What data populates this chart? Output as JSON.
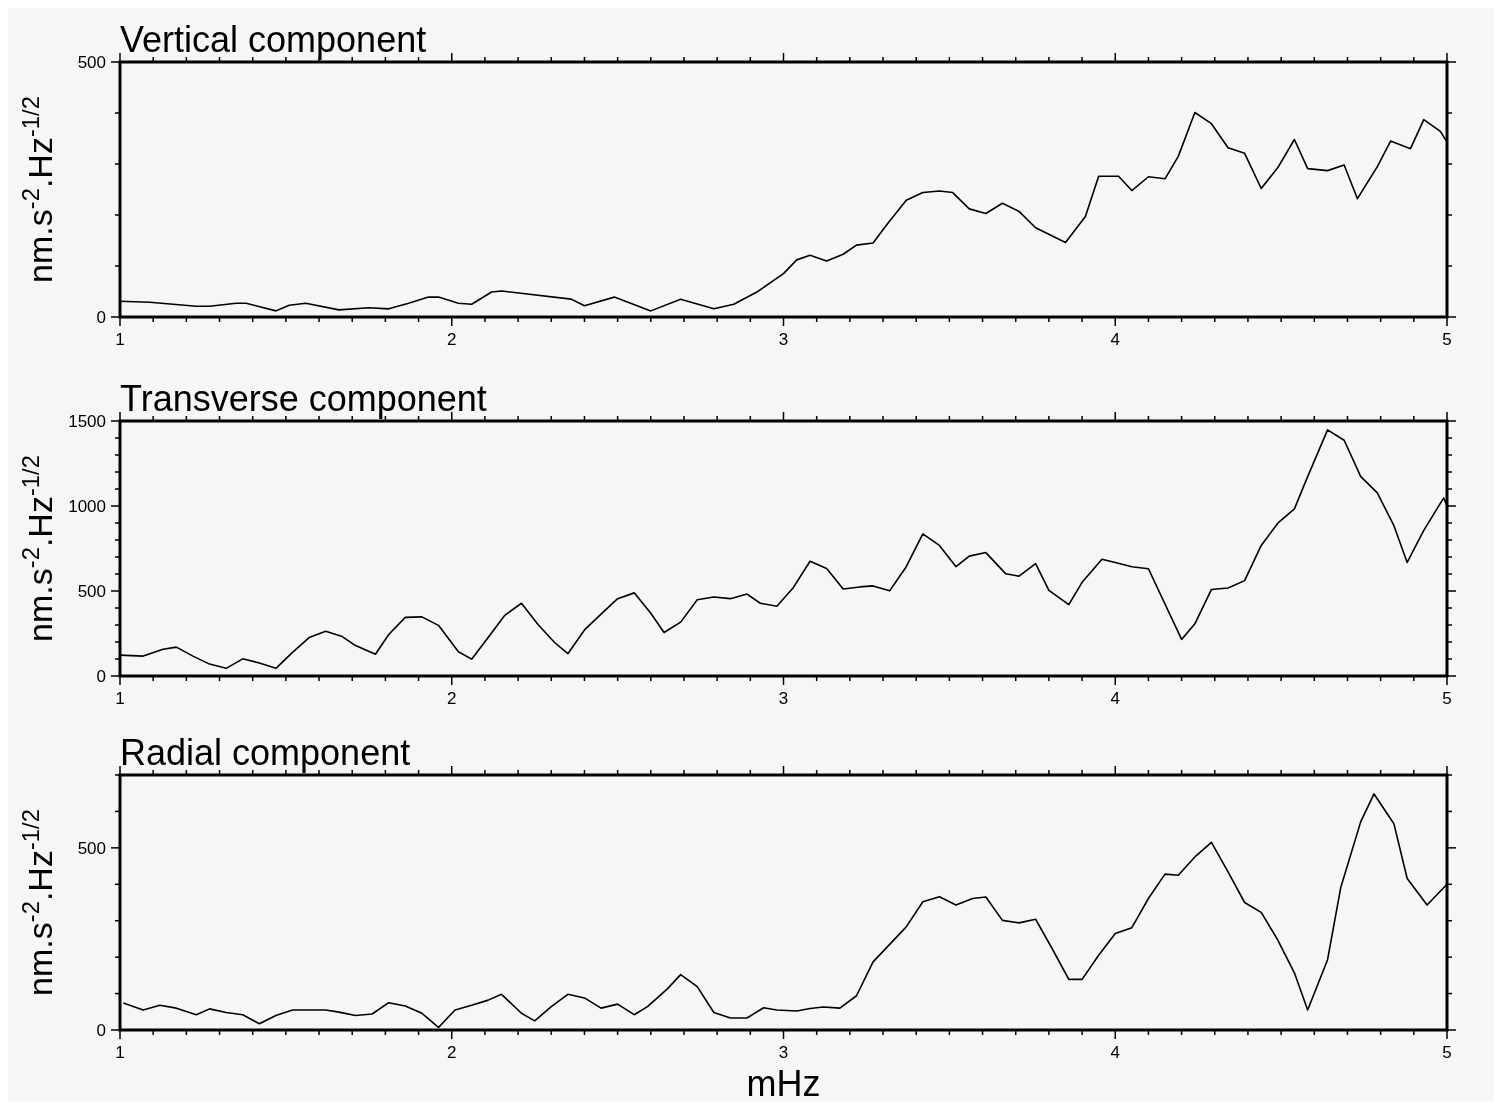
{
  "chart_data": [
    {
      "type": "line",
      "title": "Vertical component",
      "ylabel": "nm.s$^{-2}$.Hz$^{-1/2}$",
      "xlim": [
        1,
        5
      ],
      "ylim": [
        0,
        500
      ],
      "xticks": [
        1,
        {
          "value": 1.1,
          "label": null
        },
        {
          "value": 1.2,
          "label": null
        },
        {
          "value": 1.3,
          "label": null
        },
        {
          "value": 1.4,
          "label": null
        },
        {
          "value": 1.5,
          "label": null
        },
        {
          "value": 1.6,
          "label": null
        },
        {
          "value": 1.7,
          "label": null
        },
        {
          "value": 1.8,
          "label": null
        },
        {
          "value": 1.9,
          "label": null
        },
        2,
        {
          "value": 2.1,
          "label": null
        },
        {
          "value": 2.2,
          "label": null
        },
        {
          "value": 2.3,
          "label": null
        },
        {
          "value": 2.4,
          "label": null
        },
        {
          "value": 2.5,
          "label": null
        },
        {
          "value": 2.6,
          "label": null
        },
        {
          "value": 2.7,
          "label": null
        },
        {
          "value": 2.8,
          "label": null
        },
        {
          "value": 2.9,
          "label": null
        },
        3,
        {
          "value": 3.1,
          "label": null
        },
        {
          "value": 3.2,
          "label": null
        },
        {
          "value": 3.3,
          "label": null
        },
        {
          "value": 3.4,
          "label": null
        },
        {
          "value": 3.5,
          "label": null
        },
        {
          "value": 3.6,
          "label": null
        },
        {
          "value": 3.7,
          "label": null
        },
        {
          "value": 3.8,
          "label": null
        },
        {
          "value": 3.9,
          "label": null
        },
        4,
        {
          "value": 4.1,
          "label": null
        },
        {
          "value": 4.2,
          "label": null
        },
        {
          "value": 4.3,
          "label": null
        },
        {
          "value": 4.4,
          "label": null
        },
        {
          "value": 4.5,
          "label": null
        },
        {
          "value": 4.6,
          "label": null
        },
        {
          "value": 4.7,
          "label": null
        },
        {
          "value": 4.8,
          "label": null
        },
        {
          "value": 4.9,
          "label": null
        },
        5
      ],
      "yticks": [
        0,
        {
          "value": 100,
          "label": null
        },
        {
          "value": 200,
          "label": null
        },
        {
          "value": 300,
          "label": null
        },
        {
          "value": 400,
          "label": null
        },
        500
      ],
      "series": [
        {
          "color": "#000000",
          "x": [
            1.0,
            1.09,
            1.23,
            1.27,
            1.35,
            1.38,
            1.47,
            1.51,
            1.56,
            1.66,
            1.75,
            1.81,
            1.87,
            1.93,
            1.96,
            2.02,
            2.06,
            2.12,
            2.15,
            2.36,
            2.4,
            2.49,
            2.6,
            2.69,
            2.79,
            2.85,
            2.92,
            3.0,
            3.04,
            3.08,
            3.13,
            3.18,
            3.22,
            3.27,
            3.31,
            3.37,
            3.42,
            3.47,
            3.51,
            3.56,
            3.61,
            3.66,
            3.71,
            3.76,
            3.85,
            3.91,
            3.95,
            4.01,
            4.05,
            4.1,
            4.15,
            4.19,
            4.24,
            4.29,
            4.34,
            4.39,
            4.44,
            4.49,
            4.54,
            4.58,
            4.64,
            4.69,
            4.73,
            4.79,
            4.83,
            4.89,
            4.93,
            4.98,
            5.0
          ],
          "values": [
            31,
            29,
            21,
            21,
            27,
            27,
            12,
            23,
            27,
            14,
            18,
            16,
            27,
            39,
            39,
            27,
            25,
            49,
            51,
            35,
            22,
            39,
            12,
            35,
            16,
            25,
            49,
            85,
            112,
            121,
            110,
            123,
            141,
            145,
            180,
            229,
            244,
            247,
            244,
            212,
            203,
            223,
            207,
            175,
            146,
            197,
            276,
            276,
            248,
            275,
            271,
            315,
            401,
            379,
            332,
            321,
            252,
            293,
            348,
            291,
            287,
            298,
            232,
            295,
            345,
            330,
            387,
            364,
            343
          ]
        }
      ]
    },
    {
      "type": "line",
      "title": "Transverse component",
      "ylabel": "nm.s$^{-2}$.Hz$^{-1/2}$",
      "xlim": [
        1,
        5
      ],
      "ylim": [
        0,
        1500
      ],
      "xticks": [
        1,
        {
          "value": 1.1,
          "label": null
        },
        {
          "value": 1.2,
          "label": null
        },
        {
          "value": 1.3,
          "label": null
        },
        {
          "value": 1.4,
          "label": null
        },
        {
          "value": 1.5,
          "label": null
        },
        {
          "value": 1.6,
          "label": null
        },
        {
          "value": 1.7,
          "label": null
        },
        {
          "value": 1.8,
          "label": null
        },
        {
          "value": 1.9,
          "label": null
        },
        2,
        {
          "value": 2.1,
          "label": null
        },
        {
          "value": 2.2,
          "label": null
        },
        {
          "value": 2.3,
          "label": null
        },
        {
          "value": 2.4,
          "label": null
        },
        {
          "value": 2.5,
          "label": null
        },
        {
          "value": 2.6,
          "label": null
        },
        {
          "value": 2.7,
          "label": null
        },
        {
          "value": 2.8,
          "label": null
        },
        {
          "value": 2.9,
          "label": null
        },
        3,
        {
          "value": 3.1,
          "label": null
        },
        {
          "value": 3.2,
          "label": null
        },
        {
          "value": 3.3,
          "label": null
        },
        {
          "value": 3.4,
          "label": null
        },
        {
          "value": 3.5,
          "label": null
        },
        {
          "value": 3.6,
          "label": null
        },
        {
          "value": 3.7,
          "label": null
        },
        {
          "value": 3.8,
          "label": null
        },
        {
          "value": 3.9,
          "label": null
        },
        4,
        {
          "value": 4.1,
          "label": null
        },
        {
          "value": 4.2,
          "label": null
        },
        {
          "value": 4.3,
          "label": null
        },
        {
          "value": 4.4,
          "label": null
        },
        {
          "value": 4.5,
          "label": null
        },
        {
          "value": 4.6,
          "label": null
        },
        {
          "value": 4.7,
          "label": null
        },
        {
          "value": 4.8,
          "label": null
        },
        {
          "value": 4.9,
          "label": null
        },
        5
      ],
      "yticks": [
        0,
        {
          "value": 100,
          "label": null
        },
        {
          "value": 200,
          "label": null
        },
        {
          "value": 300,
          "label": null
        },
        {
          "value": 400,
          "label": null
        },
        500,
        {
          "value": 600,
          "label": null
        },
        {
          "value": 700,
          "label": null
        },
        {
          "value": 800,
          "label": null
        },
        {
          "value": 900,
          "label": null
        },
        1000,
        {
          "value": 1100,
          "label": null
        },
        {
          "value": 1200,
          "label": null
        },
        {
          "value": 1300,
          "label": null
        },
        {
          "value": 1400,
          "label": null
        },
        1500
      ],
      "series": [
        {
          "color": "#000000",
          "x": [
            1.0,
            1.07,
            1.13,
            1.17,
            1.22,
            1.27,
            1.32,
            1.37,
            1.42,
            1.47,
            1.52,
            1.57,
            1.62,
            1.67,
            1.71,
            1.77,
            1.81,
            1.86,
            1.91,
            1.96,
            2.02,
            2.06,
            2.1,
            2.16,
            2.21,
            2.26,
            2.31,
            2.35,
            2.4,
            2.45,
            2.5,
            2.55,
            2.6,
            2.64,
            2.69,
            2.74,
            2.79,
            2.84,
            2.89,
            2.93,
            2.98,
            3.03,
            3.08,
            3.13,
            3.18,
            3.23,
            3.27,
            3.32,
            3.37,
            3.42,
            3.47,
            3.52,
            3.56,
            3.61,
            3.67,
            3.71,
            3.76,
            3.8,
            3.86,
            3.9,
            3.96,
            4.0,
            4.05,
            4.1,
            4.2,
            4.24,
            4.29,
            4.34,
            4.39,
            4.44,
            4.49,
            4.54,
            4.58,
            4.64,
            4.69,
            4.74,
            4.79,
            4.84,
            4.88,
            4.93,
            4.99,
            5.0
          ],
          "values": [
            123,
            117,
            157,
            170,
            117,
            70,
            45,
            101,
            77,
            45,
            139,
            226,
            263,
            232,
            179,
            128,
            244,
            345,
            348,
            298,
            143,
            99,
            202,
            357,
            428,
            303,
            197,
            131,
            271,
            364,
            455,
            489,
            369,
            256,
            317,
            449,
            465,
            455,
            482,
            428,
            410,
            521,
            675,
            632,
            512,
            524,
            530,
            501,
            643,
            836,
            768,
            643,
            705,
            726,
            601,
            587,
            661,
            504,
            420,
            551,
            687,
            668,
            643,
            631,
            215,
            307,
            509,
            518,
            561,
            768,
            899,
            983,
            1173,
            1448,
            1387,
            1173,
            1077,
            884,
            668,
            857,
            1048,
            1002
          ]
        }
      ]
    },
    {
      "type": "line",
      "title": "Radial component",
      "ylabel": "nm.s$^{-2}$.Hz$^{-1/2}$",
      "xlabel": "mHz",
      "xlim": [
        1,
        5
      ],
      "ylim": [
        0,
        700
      ],
      "xticks": [
        1,
        {
          "value": 1.1,
          "label": null
        },
        {
          "value": 1.2,
          "label": null
        },
        {
          "value": 1.3,
          "label": null
        },
        {
          "value": 1.4,
          "label": null
        },
        {
          "value": 1.5,
          "label": null
        },
        {
          "value": 1.6,
          "label": null
        },
        {
          "value": 1.7,
          "label": null
        },
        {
          "value": 1.8,
          "label": null
        },
        {
          "value": 1.9,
          "label": null
        },
        2,
        {
          "value": 2.1,
          "label": null
        },
        {
          "value": 2.2,
          "label": null
        },
        {
          "value": 2.3,
          "label": null
        },
        {
          "value": 2.4,
          "label": null
        },
        {
          "value": 2.5,
          "label": null
        },
        {
          "value": 2.6,
          "label": null
        },
        {
          "value": 2.7,
          "label": null
        },
        {
          "value": 2.8,
          "label": null
        },
        {
          "value": 2.9,
          "label": null
        },
        3,
        {
          "value": 3.1,
          "label": null
        },
        {
          "value": 3.2,
          "label": null
        },
        {
          "value": 3.3,
          "label": null
        },
        {
          "value": 3.4,
          "label": null
        },
        {
          "value": 3.5,
          "label": null
        },
        {
          "value": 3.6,
          "label": null
        },
        {
          "value": 3.7,
          "label": null
        },
        {
          "value": 3.8,
          "label": null
        },
        {
          "value": 3.9,
          "label": null
        },
        4,
        {
          "value": 4.1,
          "label": null
        },
        {
          "value": 4.2,
          "label": null
        },
        {
          "value": 4.3,
          "label": null
        },
        {
          "value": 4.4,
          "label": null
        },
        {
          "value": 4.5,
          "label": null
        },
        {
          "value": 4.6,
          "label": null
        },
        {
          "value": 4.7,
          "label": null
        },
        {
          "value": 4.8,
          "label": null
        },
        {
          "value": 4.9,
          "label": null
        },
        5
      ],
      "yticks": [
        0,
        {
          "value": 100,
          "label": null
        },
        {
          "value": 200,
          "label": null
        },
        {
          "value": 300,
          "label": null
        },
        {
          "value": 400,
          "label": null
        },
        500,
        {
          "value": 600,
          "label": null
        },
        {
          "value": 700,
          "label": null
        }
      ],
      "series": [
        {
          "color": "#000000",
          "x": [
            1.01,
            1.07,
            1.12,
            1.17,
            1.23,
            1.27,
            1.32,
            1.37,
            1.42,
            1.47,
            1.52,
            1.57,
            1.62,
            1.66,
            1.71,
            1.76,
            1.81,
            1.86,
            1.91,
            1.96,
            2.01,
            2.06,
            2.11,
            2.15,
            2.21,
            2.25,
            2.3,
            2.35,
            2.4,
            2.45,
            2.5,
            2.55,
            2.59,
            2.65,
            2.69,
            2.74,
            2.79,
            2.84,
            2.89,
            2.94,
            2.98,
            3.04,
            3.08,
            3.12,
            3.17,
            3.22,
            3.27,
            3.32,
            3.37,
            3.42,
            3.47,
            3.52,
            3.57,
            3.61,
            3.66,
            3.71,
            3.76,
            3.81,
            3.86,
            3.9,
            3.95,
            4.0,
            4.05,
            4.1,
            4.15,
            4.19,
            4.24,
            4.29,
            4.34,
            4.39,
            4.44,
            4.49,
            4.54,
            4.58,
            4.64,
            4.68,
            4.74,
            4.78,
            4.84,
            4.88,
            4.94,
            5.0
          ],
          "values": [
            74,
            55,
            68,
            60,
            42,
            58,
            48,
            42,
            17,
            40,
            55,
            55,
            55,
            49,
            40,
            44,
            75,
            66,
            46,
            7,
            55,
            68,
            82,
            98,
            46,
            25,
            64,
            98,
            88,
            60,
            71,
            42,
            64,
            113,
            152,
            119,
            48,
            33,
            33,
            61,
            55,
            52,
            59,
            63,
            60,
            94,
            187,
            235,
            283,
            352,
            366,
            343,
            361,
            365,
            301,
            294,
            304,
            223,
            139,
            139,
            205,
            265,
            281,
            361,
            428,
            425,
            475,
            515,
            434,
            350,
            323,
            247,
            157,
            55,
            193,
            392,
            572,
            648,
            566,
            416,
            343,
            400
          ]
        }
      ]
    }
  ]
}
